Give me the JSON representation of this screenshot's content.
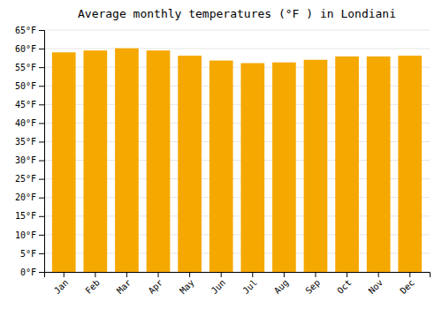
{
  "chart_data": {
    "type": "bar",
    "title": "Average monthly temperatures (°F ) in Londiani",
    "categories": [
      "Jan",
      "Feb",
      "Mar",
      "Apr",
      "May",
      "Jun",
      "Jul",
      "Aug",
      "Sep",
      "Oct",
      "Nov",
      "Dec"
    ],
    "values": [
      59.0,
      59.5,
      60.1,
      59.5,
      58.1,
      56.8,
      56.1,
      56.3,
      57.0,
      57.9,
      57.9,
      58.1
    ],
    "color": "#F5A800",
    "ylim": [
      0,
      65
    ],
    "yticks": [
      {
        "value": 0,
        "label": "0°F"
      },
      {
        "value": 5,
        "label": "5°F"
      },
      {
        "value": 10,
        "label": "10°F"
      },
      {
        "value": 15,
        "label": "15°F"
      },
      {
        "value": 20,
        "label": "20°F"
      },
      {
        "value": 25,
        "label": "25°F"
      },
      {
        "value": 30,
        "label": "30°F"
      },
      {
        "value": 35,
        "label": "35°F"
      },
      {
        "value": 40,
        "label": "40°F"
      },
      {
        "value": 45,
        "label": "45°F"
      },
      {
        "value": 50,
        "label": "50°F"
      },
      {
        "value": 55,
        "label": "55°F"
      },
      {
        "value": 60,
        "label": "60°F"
      },
      {
        "value": 65,
        "label": "65°F"
      }
    ],
    "grid": true
  }
}
